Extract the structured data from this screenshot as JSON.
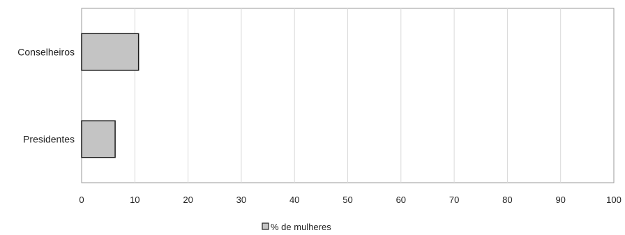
{
  "chart_data": {
    "type": "bar",
    "orientation": "horizontal",
    "categories": [
      "Conselheiros",
      "Presidentes"
    ],
    "series": [
      {
        "name": "% de mulheres",
        "values": [
          10.7,
          6.3
        ],
        "color": "#c4c4c4"
      }
    ],
    "xlim": [
      0,
      100
    ],
    "x_ticks": [
      0,
      10,
      20,
      30,
      40,
      50,
      60,
      70,
      80,
      90,
      100
    ],
    "grid": true,
    "legend_position": "bottom"
  }
}
